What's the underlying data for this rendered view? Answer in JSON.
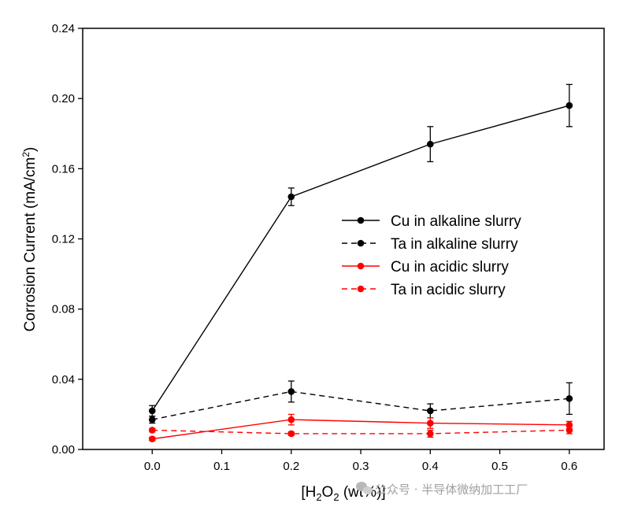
{
  "chart_data": {
    "type": "line",
    "title": "",
    "xlabel": {
      "main": "[H",
      "sub": "2",
      "mid": "O",
      "sub2": "2",
      "end": " (wt%)]"
    },
    "ylabel": {
      "main": "Corrosion Current (mA/cm",
      "sup": "2",
      "end": ")"
    },
    "xlim": [
      -0.1,
      0.65
    ],
    "ylim": [
      0,
      0.24
    ],
    "xticks": [
      0.0,
      0.1,
      0.2,
      0.3,
      0.4,
      0.5,
      0.6
    ],
    "xtick_labels": [
      "0.0",
      "0.1",
      "0.2",
      "0.3",
      "0.4",
      "0.5",
      "0.6"
    ],
    "yticks": [
      0.0,
      0.04,
      0.08,
      0.12,
      0.16,
      0.2,
      0.24
    ],
    "ytick_labels": [
      "0.00",
      "0.04",
      "0.08",
      "0.12",
      "0.16",
      "0.20",
      "0.24"
    ],
    "grid": false,
    "legend_position": "center-right",
    "series": [
      {
        "name": "Cu in alkaline slurry",
        "color": "#000000",
        "dash": "solid",
        "x": [
          0.0,
          0.2,
          0.4,
          0.6
        ],
        "y": [
          0.022,
          0.144,
          0.174,
          0.196
        ],
        "err": [
          0.003,
          0.005,
          0.01,
          0.012
        ]
      },
      {
        "name": "Ta in alkaline slurry",
        "color": "#000000",
        "dash": "dashed",
        "x": [
          0.0,
          0.2,
          0.4,
          0.6
        ],
        "y": [
          0.017,
          0.033,
          0.022,
          0.029
        ],
        "err": [
          0.002,
          0.006,
          0.004,
          0.009
        ]
      },
      {
        "name": "Cu in acidic slurry",
        "color": "#ff0000",
        "dash": "solid",
        "x": [
          0.0,
          0.2,
          0.4,
          0.6
        ],
        "y": [
          0.006,
          0.017,
          0.015,
          0.014
        ],
        "err": [
          0.001,
          0.003,
          0.003,
          0.002
        ]
      },
      {
        "name": "Ta in acidic slurry",
        "color": "#ff0000",
        "dash": "dashed",
        "x": [
          0.0,
          0.2,
          0.4,
          0.6
        ],
        "y": [
          0.011,
          0.009,
          0.009,
          0.011
        ],
        "err": [
          0.001,
          0.001,
          0.002,
          0.002
        ]
      }
    ]
  },
  "watermark": {
    "text": "公众号 · 半导体微纳加工工厂",
    "icon": "wechat-icon"
  }
}
